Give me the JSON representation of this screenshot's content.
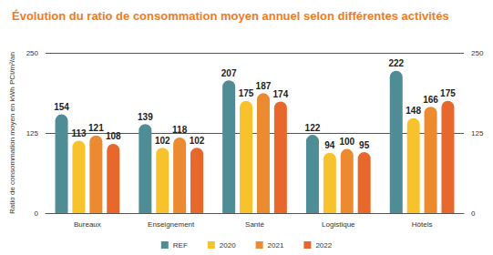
{
  "chart_data": {
    "type": "bar",
    "title": "Évolution du ratio de consommation moyen annuel selon différentes activités",
    "y_label": "Ratio de consommation moyen en kWh PCI/m²/an",
    "categories": [
      "Bureaux",
      "Enseignement",
      "Santé",
      "Logistique",
      "Hôtels"
    ],
    "series": [
      {
        "name": "REF",
        "color": "#4e8c96",
        "values": [
          154,
          139,
          207,
          122,
          222
        ]
      },
      {
        "name": "2020",
        "color": "#f8c22c",
        "values": [
          113,
          102,
          175,
          94,
          148
        ]
      },
      {
        "name": "2021",
        "color": "#ec8a2f",
        "values": [
          121,
          118,
          187,
          100,
          166
        ]
      },
      {
        "name": "2022",
        "color": "#e8672a",
        "values": [
          108,
          102,
          174,
          95,
          175
        ]
      }
    ],
    "ylim": [
      0,
      250
    ],
    "yticks": [
      0,
      125,
      250
    ],
    "y2lim": [
      0,
      250
    ],
    "y2ticks": [
      0,
      125,
      250
    ],
    "grid": true,
    "legend": "bottom",
    "data_labels": true
  }
}
